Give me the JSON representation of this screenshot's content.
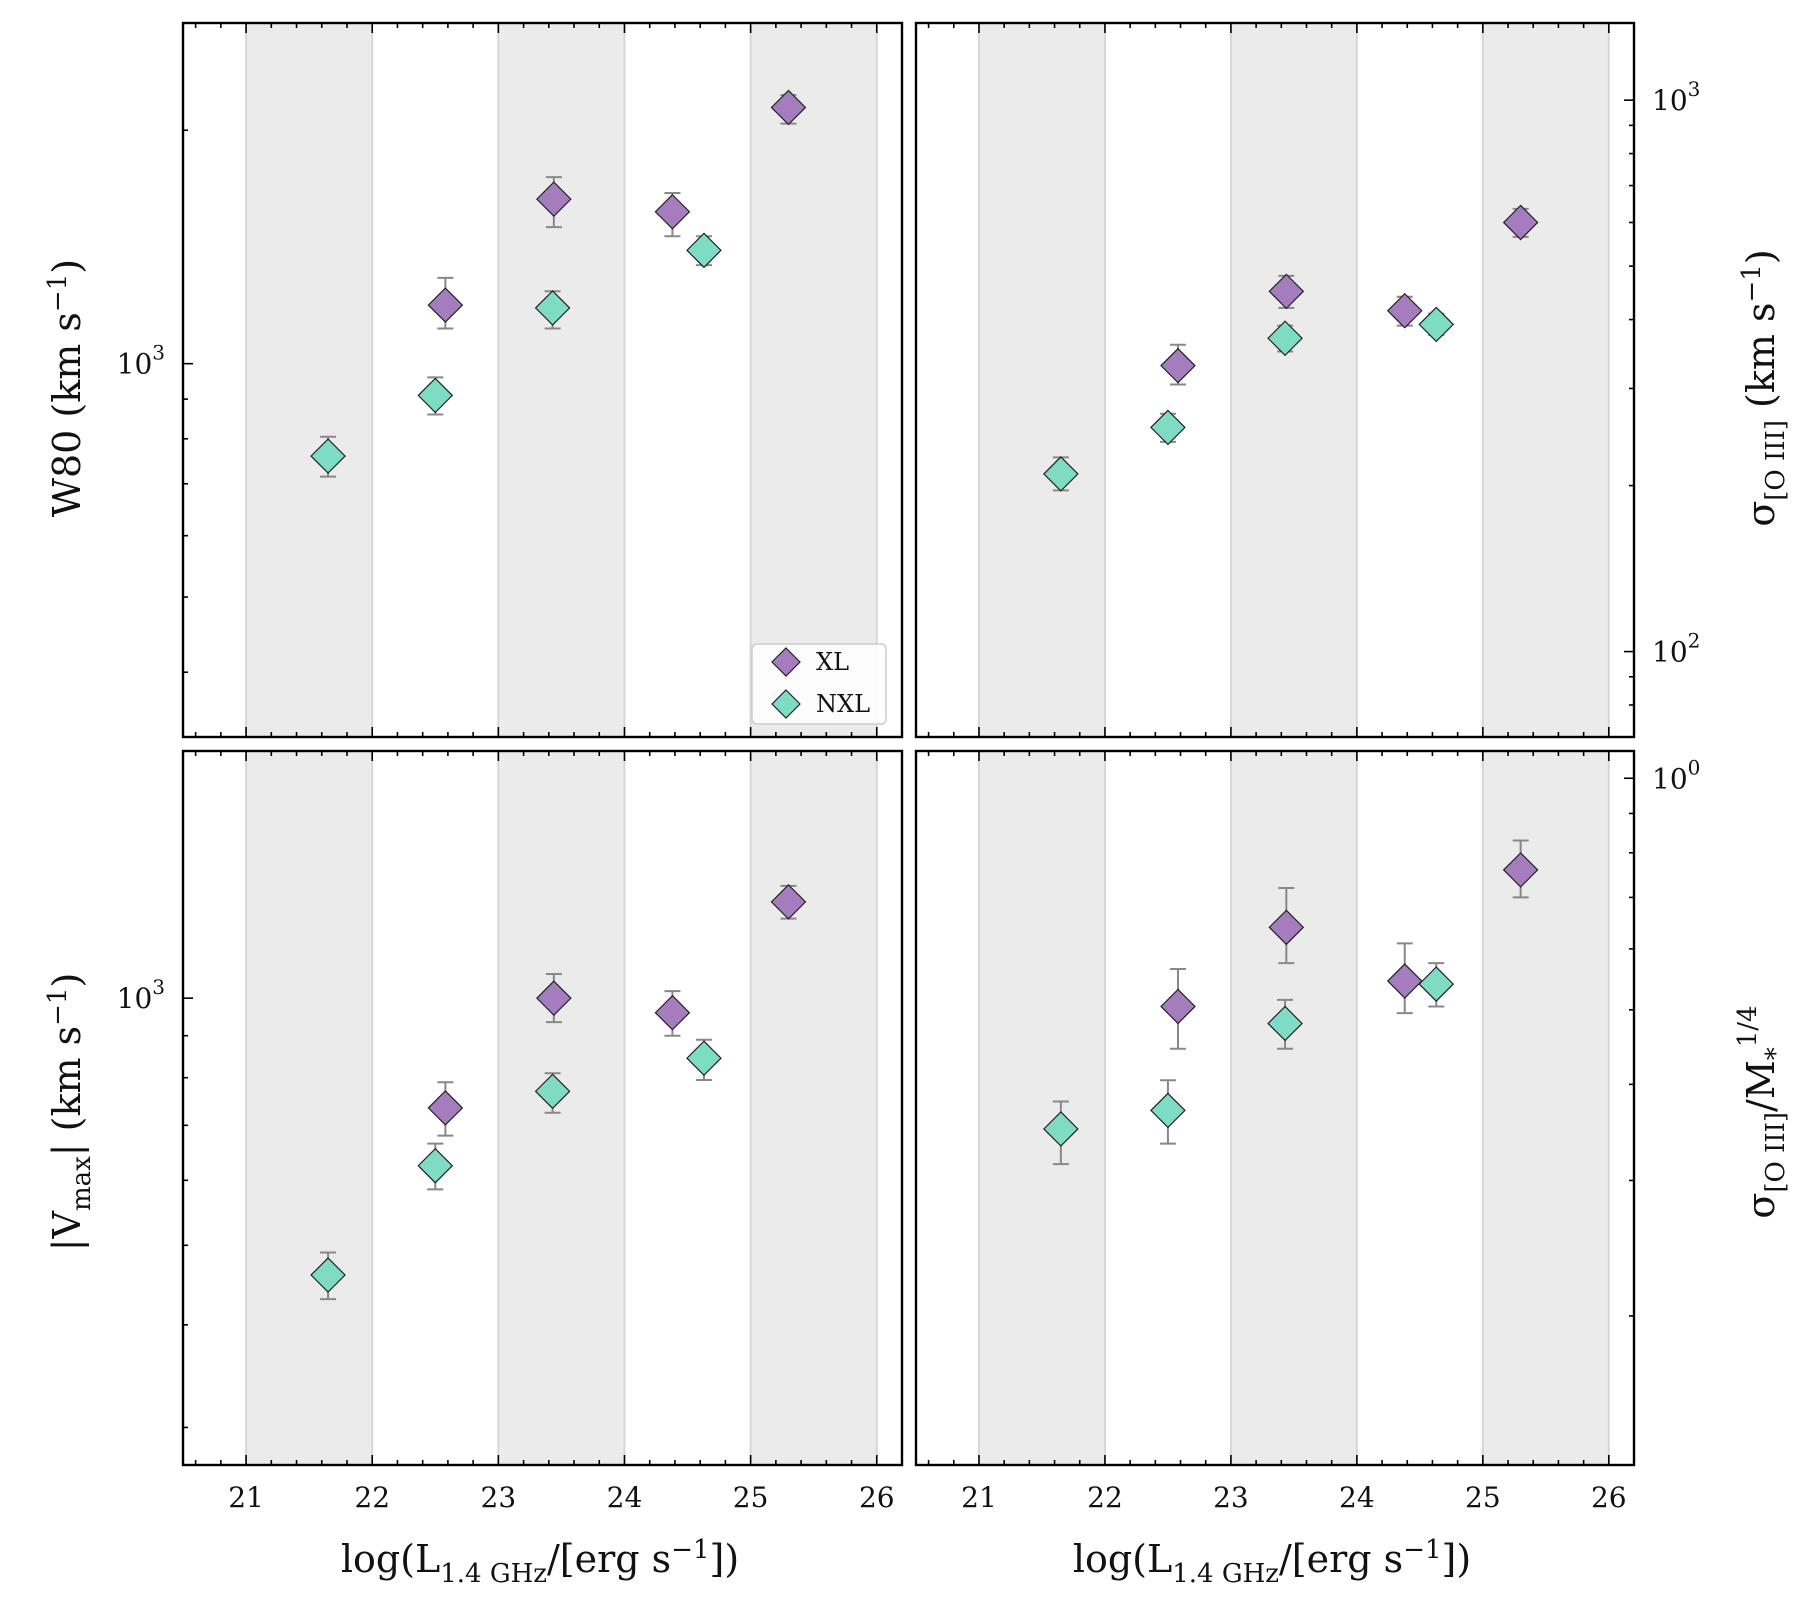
{
  "colors": {
    "XL": "#a57cbd",
    "NXL": "#7fdcc4",
    "band": "#ebebeb",
    "band_edge": "#d7d7d7",
    "errorbar": "#888888",
    "marker_edge": "#222222"
  },
  "bands": [
    [
      21,
      22
    ],
    [
      23,
      24
    ],
    [
      25,
      26
    ]
  ],
  "shared_xlim": [
    20.5,
    26.2
  ],
  "shared_xticks": [
    21,
    22,
    23,
    24,
    25,
    26
  ],
  "xlabel": {
    "main": "log(L",
    "sub": "1.4 GHz",
    "tail": "/[erg s",
    "sup": "−1",
    "end": "])"
  },
  "legend": {
    "xl_label": "XL",
    "nxl_label": "NXL"
  },
  "chart_data": [
    {
      "id": "w80",
      "type": "scatter",
      "position": "top-left",
      "yscale": "log",
      "ylim": [
        330,
        2750
      ],
      "ytick_label": "10",
      "ytick_exp": "3",
      "ylabel_main": "W80 (km s",
      "ylabel_sup": "−1",
      "ylabel_end": ")",
      "series": [
        {
          "name": "XL",
          "x": [
            22.58,
            23.44,
            24.38,
            25.3
          ],
          "y": [
            1190,
            1630,
            1570,
            2140
          ],
          "yerr_lo": [
            1110,
            1500,
            1460,
            2040
          ],
          "yerr_hi": [
            1290,
            1740,
            1660,
            2220
          ]
        },
        {
          "name": "NXL",
          "x": [
            21.65,
            22.5,
            23.43,
            24.63
          ],
          "y": [
            760,
            910,
            1180,
            1400
          ],
          "yerr_lo": [
            715,
            860,
            1110,
            1340
          ],
          "yerr_hi": [
            805,
            960,
            1240,
            1460
          ]
        }
      ]
    },
    {
      "id": "sigma",
      "type": "scatter",
      "position": "top-right",
      "yscale": "log",
      "ylim": [
        70,
        1380
      ],
      "ytick_label": "10",
      "ytick_exp": "3",
      "ytick2_label": "10",
      "ytick2_exp": "2",
      "ylabel_main": "σ",
      "ylabel_sub": "[O III]",
      "ylabel_tail": " (km s",
      "ylabel_sup": "−1",
      "ylabel_end": ")",
      "series": [
        {
          "name": "XL",
          "x": [
            22.58,
            23.44,
            24.38,
            25.3
          ],
          "y": [
            330,
            450,
            415,
            600
          ],
          "yerr_lo": [
            305,
            420,
            390,
            565
          ],
          "yerr_hi": [
            360,
            480,
            440,
            635
          ]
        },
        {
          "name": "NXL",
          "x": [
            21.65,
            22.5,
            23.43,
            24.63
          ],
          "y": [
            210,
            255,
            370,
            392
          ],
          "yerr_lo": [
            196,
            240,
            350,
            375
          ],
          "yerr_hi": [
            225,
            270,
            390,
            410
          ]
        }
      ]
    },
    {
      "id": "vmax",
      "type": "scatter",
      "position": "bottom-left",
      "yscale": "log",
      "ylim": [
        270,
        2000
      ],
      "ytick_label": "10",
      "ytick_exp": "3",
      "ylabel_main": "|V",
      "ylabel_sub": "max",
      "ylabel_tail": "| (km s",
      "ylabel_sup": "−1",
      "ylabel_end": ")",
      "series": [
        {
          "name": "XL",
          "x": [
            22.58,
            23.44,
            24.38,
            25.3
          ],
          "y": [
            735,
            1000,
            960,
            1310
          ],
          "yerr_lo": [
            680,
            935,
            900,
            1250
          ],
          "yerr_hi": [
            790,
            1070,
            1020,
            1370
          ]
        },
        {
          "name": "NXL",
          "x": [
            21.65,
            22.5,
            23.43,
            24.63
          ],
          "y": [
            460,
            625,
            770,
            845
          ],
          "yerr_lo": [
            430,
            585,
            725,
            795
          ],
          "yerr_hi": [
            490,
            665,
            810,
            890
          ]
        }
      ]
    },
    {
      "id": "sigma_norm",
      "type": "scatter",
      "position": "bottom-right",
      "yscale": "log",
      "ylim": [
        0.128,
        1.085
      ],
      "ytick_label": "10",
      "ytick_exp": "0",
      "ylabel_main": "σ",
      "ylabel_sub": "[O III]",
      "ylabel_tail": "/M",
      "ylabel_sub2": "*",
      "ylabel_sup": "1/4",
      "series": [
        {
          "name": "XL",
          "x": [
            22.58,
            23.44,
            24.38,
            25.3
          ],
          "y": [
            0.505,
            0.64,
            0.545,
            0.76
          ],
          "yerr_lo": [
            0.445,
            0.575,
            0.495,
            0.7
          ],
          "yerr_hi": [
            0.565,
            0.72,
            0.61,
            0.83
          ]
        },
        {
          "name": "NXL",
          "x": [
            21.65,
            22.5,
            23.43,
            24.63
          ],
          "y": [
            0.35,
            0.37,
            0.48,
            0.54
          ],
          "yerr_lo": [
            0.315,
            0.335,
            0.445,
            0.505
          ],
          "yerr_hi": [
            0.38,
            0.405,
            0.515,
            0.575
          ]
        }
      ]
    }
  ]
}
